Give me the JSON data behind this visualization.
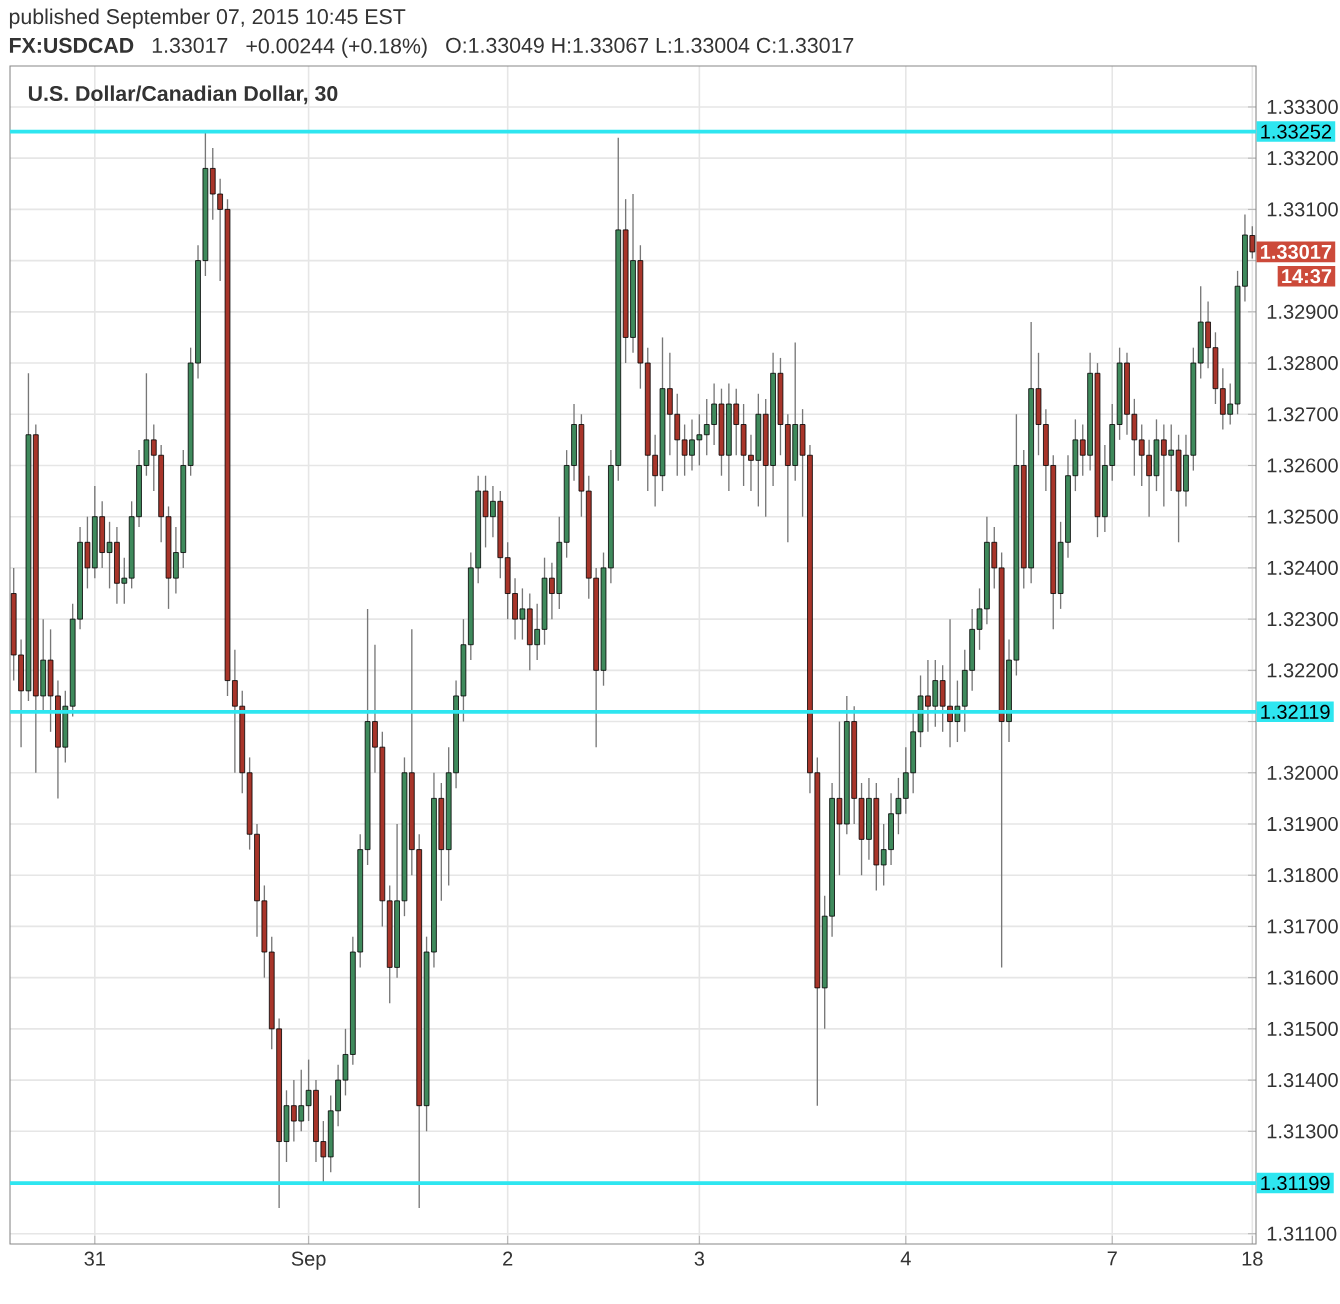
{
  "chart_data": {
    "type": "candlestick",
    "title": "FX:USDCAD",
    "subtitle": "U.S. Dollar/Canadian Dollar, 30",
    "annotations": [
      "published September 07, 2015 10:45 EST",
      "1.33017",
      "+0.00244 (+0.18%)",
      "O:1.33049 H:1.33067 L:1.33004 C:1.33017",
      "1.33017",
      "14:37"
    ],
    "categories": [
      null,
      null,
      null,
      null,
      null,
      null,
      null,
      null,
      null,
      null,
      null,
      "31",
      null,
      null,
      null,
      null,
      null,
      null,
      null,
      null,
      null,
      null,
      null,
      null,
      null,
      null,
      null,
      null,
      null,
      null,
      null,
      null,
      null,
      null,
      null,
      null,
      null,
      null,
      null,
      null,
      "Sep",
      null,
      null,
      null,
      null,
      null,
      null,
      null,
      null,
      null,
      null,
      null,
      null,
      null,
      null,
      null,
      null,
      null,
      null,
      null,
      null,
      null,
      null,
      null,
      null,
      null,
      null,
      "2",
      null,
      null,
      null,
      null,
      null,
      null,
      null,
      null,
      null,
      null,
      null,
      null,
      null,
      null,
      null,
      null,
      null,
      null,
      null,
      null,
      null,
      null,
      null,
      null,
      null,
      "3",
      null,
      null,
      null,
      null,
      null,
      null,
      null,
      null,
      null,
      null,
      null,
      null,
      null,
      null,
      null,
      null,
      null,
      null,
      null,
      null,
      null,
      null,
      null,
      null,
      null,
      null,
      null,
      "4",
      null,
      null,
      null,
      null,
      null,
      null,
      null,
      null,
      null,
      null,
      null,
      null,
      null,
      null,
      null,
      null,
      null,
      null,
      null,
      null,
      null,
      null,
      null,
      null,
      null,
      null,
      null,
      "7",
      null,
      null,
      null,
      null,
      null,
      null,
      null,
      null,
      null,
      null,
      null,
      null,
      null,
      null,
      null,
      null,
      null,
      null,
      "18"
    ],
    "ohlc": [
      [
        1.3235,
        1.324,
        1.3218,
        1.3223
      ],
      [
        1.3223,
        1.3226,
        1.3205,
        1.3216
      ],
      [
        1.3216,
        1.3278,
        1.3214,
        1.3266
      ],
      [
        1.3266,
        1.3268,
        1.32,
        1.3215
      ],
      [
        1.3215,
        1.323,
        1.3212,
        1.3222
      ],
      [
        1.3222,
        1.3228,
        1.3208,
        1.3215
      ],
      [
        1.3215,
        1.3218,
        1.3195,
        1.3205
      ],
      [
        1.3205,
        1.3216,
        1.3202,
        1.3213
      ],
      [
        1.3213,
        1.3233,
        1.3211,
        1.323
      ],
      [
        1.323,
        1.3248,
        1.3228,
        1.3245
      ],
      [
        1.3245,
        1.325,
        1.3236,
        1.324
      ],
      [
        1.324,
        1.3256,
        1.3238,
        1.325
      ],
      [
        1.325,
        1.3253,
        1.324,
        1.3243
      ],
      [
        1.3243,
        1.3249,
        1.3236,
        1.3245
      ],
      [
        1.3245,
        1.3248,
        1.3233,
        1.3237
      ],
      [
        1.3237,
        1.3242,
        1.3233,
        1.3238
      ],
      [
        1.3238,
        1.3253,
        1.3236,
        1.325
      ],
      [
        1.325,
        1.3263,
        1.3248,
        1.326
      ],
      [
        1.326,
        1.3278,
        1.3258,
        1.3265
      ],
      [
        1.3265,
        1.3268,
        1.3255,
        1.3262
      ],
      [
        1.3262,
        1.3264,
        1.3245,
        1.325
      ],
      [
        1.325,
        1.3252,
        1.3232,
        1.3238
      ],
      [
        1.3238,
        1.3248,
        1.3235,
        1.3243
      ],
      [
        1.3243,
        1.3263,
        1.324,
        1.326
      ],
      [
        1.326,
        1.3283,
        1.3258,
        1.328
      ],
      [
        1.328,
        1.3303,
        1.3277,
        1.33
      ],
      [
        1.33,
        1.3325,
        1.3297,
        1.3318
      ],
      [
        1.3318,
        1.3322,
        1.3308,
        1.3313
      ],
      [
        1.3313,
        1.3316,
        1.3296,
        1.331
      ],
      [
        1.331,
        1.3312,
        1.3215,
        1.3218
      ],
      [
        1.3218,
        1.3224,
        1.32,
        1.3213
      ],
      [
        1.3213,
        1.3216,
        1.3196,
        1.32
      ],
      [
        1.32,
        1.3203,
        1.3185,
        1.3188
      ],
      [
        1.3188,
        1.319,
        1.3168,
        1.3175
      ],
      [
        1.3175,
        1.3178,
        1.316,
        1.3165
      ],
      [
        1.3165,
        1.3168,
        1.3146,
        1.315
      ],
      [
        1.315,
        1.3152,
        1.3115,
        1.3128
      ],
      [
        1.3128,
        1.3138,
        1.3124,
        1.3135
      ],
      [
        1.3135,
        1.314,
        1.3128,
        1.3132
      ],
      [
        1.3132,
        1.3142,
        1.313,
        1.3135
      ],
      [
        1.3135,
        1.3144,
        1.3132,
        1.3138
      ],
      [
        1.3138,
        1.314,
        1.3124,
        1.3128
      ],
      [
        1.3128,
        1.3132,
        1.312,
        1.3125
      ],
      [
        1.3125,
        1.3137,
        1.3122,
        1.3134
      ],
      [
        1.3134,
        1.3143,
        1.3131,
        1.314
      ],
      [
        1.314,
        1.315,
        1.3137,
        1.3145
      ],
      [
        1.3145,
        1.3168,
        1.3143,
        1.3165
      ],
      [
        1.3165,
        1.3188,
        1.3162,
        1.3185
      ],
      [
        1.3185,
        1.3232,
        1.3182,
        1.321
      ],
      [
        1.321,
        1.3225,
        1.32,
        1.3205
      ],
      [
        1.3205,
        1.3208,
        1.317,
        1.3175
      ],
      [
        1.3175,
        1.3178,
        1.3155,
        1.3162
      ],
      [
        1.3162,
        1.319,
        1.316,
        1.3175
      ],
      [
        1.3175,
        1.3203,
        1.3172,
        1.32
      ],
      [
        1.32,
        1.3228,
        1.318,
        1.3185
      ],
      [
        1.3185,
        1.3188,
        1.3115,
        1.3135
      ],
      [
        1.3135,
        1.3168,
        1.313,
        1.3165
      ],
      [
        1.3165,
        1.32,
        1.3162,
        1.3195
      ],
      [
        1.3195,
        1.3198,
        1.3175,
        1.3185
      ],
      [
        1.3185,
        1.3205,
        1.3178,
        1.32
      ],
      [
        1.32,
        1.3218,
        1.3197,
        1.3215
      ],
      [
        1.3215,
        1.323,
        1.321,
        1.3225
      ],
      [
        1.3225,
        1.3243,
        1.3222,
        1.324
      ],
      [
        1.324,
        1.3258,
        1.3237,
        1.3255
      ],
      [
        1.3255,
        1.3258,
        1.3244,
        1.325
      ],
      [
        1.325,
        1.3256,
        1.3246,
        1.3253
      ],
      [
        1.3253,
        1.3255,
        1.3238,
        1.3242
      ],
      [
        1.3242,
        1.3245,
        1.323,
        1.3235
      ],
      [
        1.3235,
        1.3238,
        1.3226,
        1.323
      ],
      [
        1.323,
        1.3236,
        1.3226,
        1.3232
      ],
      [
        1.3232,
        1.3235,
        1.322,
        1.3225
      ],
      [
        1.3225,
        1.3233,
        1.3222,
        1.3228
      ],
      [
        1.3228,
        1.3242,
        1.3225,
        1.3238
      ],
      [
        1.3238,
        1.3241,
        1.323,
        1.3235
      ],
      [
        1.3235,
        1.325,
        1.3232,
        1.3245
      ],
      [
        1.3245,
        1.3263,
        1.3242,
        1.326
      ],
      [
        1.326,
        1.3272,
        1.3257,
        1.3268
      ],
      [
        1.3268,
        1.327,
        1.325,
        1.3255
      ],
      [
        1.3255,
        1.3258,
        1.3234,
        1.3238
      ],
      [
        1.3238,
        1.324,
        1.3205,
        1.322
      ],
      [
        1.322,
        1.3243,
        1.3217,
        1.324
      ],
      [
        1.324,
        1.3263,
        1.3237,
        1.326
      ],
      [
        1.326,
        1.3324,
        1.3257,
        1.3306
      ],
      [
        1.3306,
        1.3312,
        1.328,
        1.3285
      ],
      [
        1.3285,
        1.3313,
        1.3282,
        1.33
      ],
      [
        1.33,
        1.3303,
        1.3275,
        1.328
      ],
      [
        1.328,
        1.3283,
        1.3255,
        1.3262
      ],
      [
        1.3262,
        1.3266,
        1.3252,
        1.3258
      ],
      [
        1.3258,
        1.3285,
        1.3255,
        1.3275
      ],
      [
        1.3275,
        1.3282,
        1.3262,
        1.327
      ],
      [
        1.327,
        1.3274,
        1.3258,
        1.3265
      ],
      [
        1.3265,
        1.3268,
        1.3258,
        1.3262
      ],
      [
        1.3262,
        1.3269,
        1.3259,
        1.3265
      ],
      [
        1.3265,
        1.327,
        1.326,
        1.3266
      ],
      [
        1.3266,
        1.3273,
        1.3262,
        1.3268
      ],
      [
        1.3268,
        1.3276,
        1.3264,
        1.3272
      ],
      [
        1.3272,
        1.3275,
        1.3258,
        1.3262
      ],
      [
        1.3262,
        1.3276,
        1.3255,
        1.3272
      ],
      [
        1.3272,
        1.3275,
        1.3262,
        1.3268
      ],
      [
        1.3268,
        1.3272,
        1.3256,
        1.3262
      ],
      [
        1.3262,
        1.3266,
        1.3255,
        1.3261
      ],
      [
        1.3261,
        1.3274,
        1.3252,
        1.327
      ],
      [
        1.327,
        1.3273,
        1.325,
        1.326
      ],
      [
        1.326,
        1.3282,
        1.3256,
        1.3278
      ],
      [
        1.3278,
        1.3281,
        1.3262,
        1.3268
      ],
      [
        1.3268,
        1.327,
        1.3245,
        1.326
      ],
      [
        1.326,
        1.3284,
        1.3257,
        1.3268
      ],
      [
        1.3268,
        1.3271,
        1.325,
        1.3262
      ],
      [
        1.3262,
        1.3264,
        1.3196,
        1.32
      ],
      [
        1.32,
        1.3203,
        1.3135,
        1.3158
      ],
      [
        1.3158,
        1.3176,
        1.315,
        1.3172
      ],
      [
        1.3172,
        1.3198,
        1.3168,
        1.3195
      ],
      [
        1.3195,
        1.321,
        1.318,
        1.319
      ],
      [
        1.319,
        1.3215,
        1.3188,
        1.321
      ],
      [
        1.321,
        1.3213,
        1.319,
        1.3195
      ],
      [
        1.3195,
        1.3198,
        1.318,
        1.3187
      ],
      [
        1.3187,
        1.3199,
        1.3183,
        1.3195
      ],
      [
        1.3195,
        1.3198,
        1.3177,
        1.3182
      ],
      [
        1.3182,
        1.319,
        1.3178,
        1.3185
      ],
      [
        1.3185,
        1.3196,
        1.3182,
        1.3192
      ],
      [
        1.3192,
        1.3199,
        1.3188,
        1.3195
      ],
      [
        1.3195,
        1.3205,
        1.3192,
        1.32
      ],
      [
        1.32,
        1.3212,
        1.3196,
        1.3208
      ],
      [
        1.3208,
        1.3219,
        1.3205,
        1.3215
      ],
      [
        1.3215,
        1.3222,
        1.3208,
        1.3213
      ],
      [
        1.3213,
        1.3222,
        1.3209,
        1.3218
      ],
      [
        1.3218,
        1.3221,
        1.3208,
        1.3213
      ],
      [
        1.3213,
        1.323,
        1.3205,
        1.321
      ],
      [
        1.321,
        1.3218,
        1.3206,
        1.3213
      ],
      [
        1.3213,
        1.3224,
        1.3208,
        1.322
      ],
      [
        1.322,
        1.3232,
        1.3216,
        1.3228
      ],
      [
        1.3228,
        1.3236,
        1.3224,
        1.3232
      ],
      [
        1.3232,
        1.325,
        1.3229,
        1.3245
      ],
      [
        1.3245,
        1.3248,
        1.3236,
        1.324
      ],
      [
        1.324,
        1.3243,
        1.3162,
        1.321
      ],
      [
        1.321,
        1.3226,
        1.3206,
        1.3222
      ],
      [
        1.3222,
        1.327,
        1.3219,
        1.326
      ],
      [
        1.326,
        1.3263,
        1.3236,
        1.324
      ],
      [
        1.324,
        1.3288,
        1.3237,
        1.3275
      ],
      [
        1.3275,
        1.3282,
        1.3262,
        1.3268
      ],
      [
        1.3268,
        1.3271,
        1.3255,
        1.326
      ],
      [
        1.326,
        1.3262,
        1.3228,
        1.3235
      ],
      [
        1.3235,
        1.3249,
        1.3232,
        1.3245
      ],
      [
        1.3245,
        1.3262,
        1.3242,
        1.3258
      ],
      [
        1.3258,
        1.3269,
        1.3255,
        1.3265
      ],
      [
        1.3265,
        1.3268,
        1.3258,
        1.3262
      ],
      [
        1.3262,
        1.3282,
        1.3259,
        1.3278
      ],
      [
        1.3278,
        1.328,
        1.3246,
        1.325
      ],
      [
        1.325,
        1.3264,
        1.3247,
        1.326
      ],
      [
        1.326,
        1.3272,
        1.3257,
        1.3268
      ],
      [
        1.3268,
        1.3283,
        1.3265,
        1.328
      ],
      [
        1.328,
        1.3282,
        1.3266,
        1.327
      ],
      [
        1.327,
        1.3273,
        1.3258,
        1.3265
      ],
      [
        1.3265,
        1.3268,
        1.3256,
        1.3262
      ],
      [
        1.3262,
        1.3265,
        1.325,
        1.3258
      ],
      [
        1.3258,
        1.3269,
        1.3255,
        1.3265
      ],
      [
        1.3265,
        1.3268,
        1.3252,
        1.3262
      ],
      [
        1.3262,
        1.3268,
        1.3255,
        1.3263
      ],
      [
        1.3263,
        1.3266,
        1.3245,
        1.3255
      ],
      [
        1.3255,
        1.3266,
        1.3252,
        1.3262
      ],
      [
        1.3262,
        1.3283,
        1.3259,
        1.328
      ],
      [
        1.328,
        1.3295,
        1.3277,
        1.3288
      ],
      [
        1.3288,
        1.3292,
        1.3279,
        1.3283
      ],
      [
        1.3283,
        1.3286,
        1.3272,
        1.3275
      ],
      [
        1.3275,
        1.3279,
        1.3267,
        1.327
      ],
      [
        1.327,
        1.3276,
        1.3268,
        1.3272
      ],
      [
        1.3272,
        1.3298,
        1.327,
        1.3295
      ],
      [
        1.3295,
        1.3309,
        1.3292,
        1.3305
      ],
      [
        1.33049,
        1.33067,
        1.33004,
        1.33017
      ]
    ],
    "ylim": [
      1.3108,
      1.3338
    ],
    "yticks": [
      {
        "value": 1.311,
        "label": "1.31100"
      },
      {
        "value": 1.312,
        "label": null
      },
      {
        "value": 1.313,
        "label": "1.31300"
      },
      {
        "value": 1.314,
        "label": "1.31400"
      },
      {
        "value": 1.315,
        "label": "1.31500"
      },
      {
        "value": 1.316,
        "label": "1.31600"
      },
      {
        "value": 1.317,
        "label": "1.31700"
      },
      {
        "value": 1.318,
        "label": "1.31800"
      },
      {
        "value": 1.319,
        "label": "1.31900"
      },
      {
        "value": 1.32,
        "label": "1.32000"
      },
      {
        "value": 1.321,
        "label": null
      },
      {
        "value": 1.322,
        "label": "1.32200"
      },
      {
        "value": 1.323,
        "label": "1.32300"
      },
      {
        "value": 1.324,
        "label": "1.32400"
      },
      {
        "value": 1.325,
        "label": "1.32500"
      },
      {
        "value": 1.326,
        "label": "1.32600"
      },
      {
        "value": 1.327,
        "label": "1.32700"
      },
      {
        "value": 1.328,
        "label": "1.32800"
      },
      {
        "value": 1.329,
        "label": "1.32900"
      },
      {
        "value": 1.33,
        "label": null
      },
      {
        "value": 1.331,
        "label": "1.33100"
      },
      {
        "value": 1.332,
        "label": "1.33200"
      },
      {
        "value": 1.333,
        "label": "1.33300"
      }
    ],
    "ref_lines": [
      {
        "axis": "y",
        "value": 1.33252,
        "label": "1.33252",
        "color": "#2ee6f0"
      },
      {
        "axis": "y",
        "value": 1.32119,
        "label": "1.32119",
        "color": "#2ee6f0"
      },
      {
        "axis": "y",
        "value": 1.31199,
        "label": "1.31199",
        "color": "#2ee6f0"
      }
    ],
    "grid": true
  }
}
